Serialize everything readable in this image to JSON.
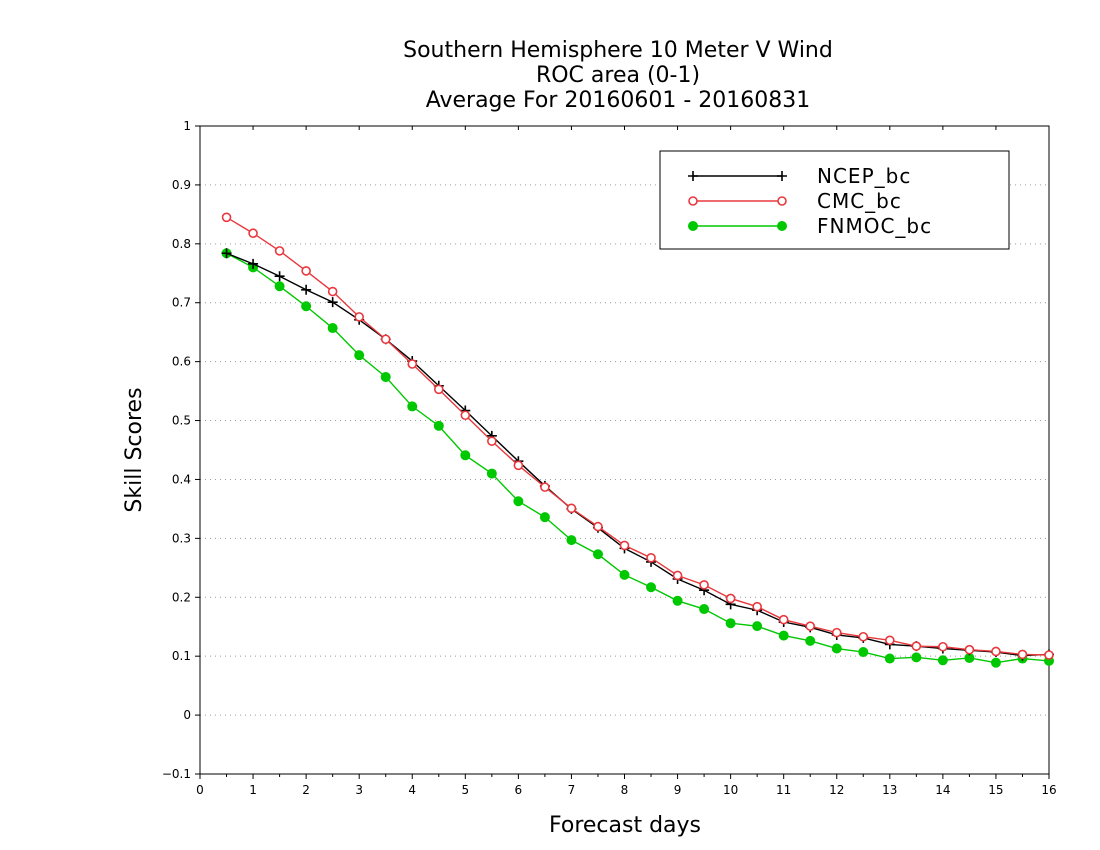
{
  "chart_data": {
    "type": "line",
    "title": [
      "Southern Hemisphere 10 Meter V Wind",
      "ROC area (0-1)",
      "Average For 20160601 - 20160831"
    ],
    "xlabel": "Forecast days",
    "ylabel": "Skill Scores",
    "xlim": [
      0,
      16
    ],
    "ylim": [
      -0.1,
      1
    ],
    "xticks": [
      "0",
      "1",
      "2",
      "3",
      "4",
      "5",
      "6",
      "7",
      "8",
      "9",
      "10",
      "11",
      "12",
      "13",
      "14",
      "15",
      "16"
    ],
    "yticks": [
      "−0.1",
      "0",
      "0.1",
      "0.2",
      "0.3",
      "0.4",
      "0.5",
      "0.6",
      "0.7",
      "0.8",
      "0.9",
      "1"
    ],
    "grid": true,
    "legend_position": "top-right",
    "x": [
      0.5,
      1,
      1.5,
      2,
      2.5,
      3,
      3.5,
      4,
      4.5,
      5,
      5.5,
      6,
      6.5,
      7,
      7.5,
      8,
      8.5,
      9,
      9.5,
      10,
      10.5,
      11,
      11.5,
      12,
      12.5,
      13,
      13.5,
      14,
      14.5,
      15,
      15.5,
      16
    ],
    "series": [
      {
        "name": "NCEP_bc",
        "color": "#000000",
        "marker": "plus",
        "values": [
          0.784,
          0.766,
          0.745,
          0.722,
          0.701,
          0.671,
          0.638,
          0.601,
          0.559,
          0.517,
          0.474,
          0.431,
          0.389,
          0.35,
          0.318,
          0.283,
          0.26,
          0.231,
          0.212,
          0.188,
          0.178,
          0.158,
          0.149,
          0.136,
          0.131,
          0.12,
          0.117,
          0.113,
          0.11,
          0.107,
          0.101,
          0.103
        ]
      },
      {
        "name": "CMC_bc",
        "color": "#e8383d",
        "marker": "open-circle",
        "values": [
          0.845,
          0.818,
          0.788,
          0.754,
          0.719,
          0.676,
          0.638,
          0.596,
          0.553,
          0.509,
          0.465,
          0.424,
          0.387,
          0.351,
          0.32,
          0.288,
          0.267,
          0.237,
          0.221,
          0.198,
          0.184,
          0.162,
          0.151,
          0.14,
          0.133,
          0.127,
          0.117,
          0.116,
          0.111,
          0.108,
          0.103,
          0.102
        ]
      },
      {
        "name": "FNMOC_bc",
        "color": "#00c800",
        "marker": "filled-circle",
        "values": [
          0.784,
          0.76,
          0.728,
          0.694,
          0.657,
          0.611,
          0.574,
          0.524,
          0.491,
          0.441,
          0.41,
          0.363,
          0.336,
          0.297,
          0.273,
          0.238,
          0.217,
          0.194,
          0.18,
          0.156,
          0.151,
          0.135,
          0.126,
          0.113,
          0.107,
          0.096,
          0.098,
          0.093,
          0.097,
          0.089,
          0.096,
          0.092
        ]
      }
    ]
  }
}
